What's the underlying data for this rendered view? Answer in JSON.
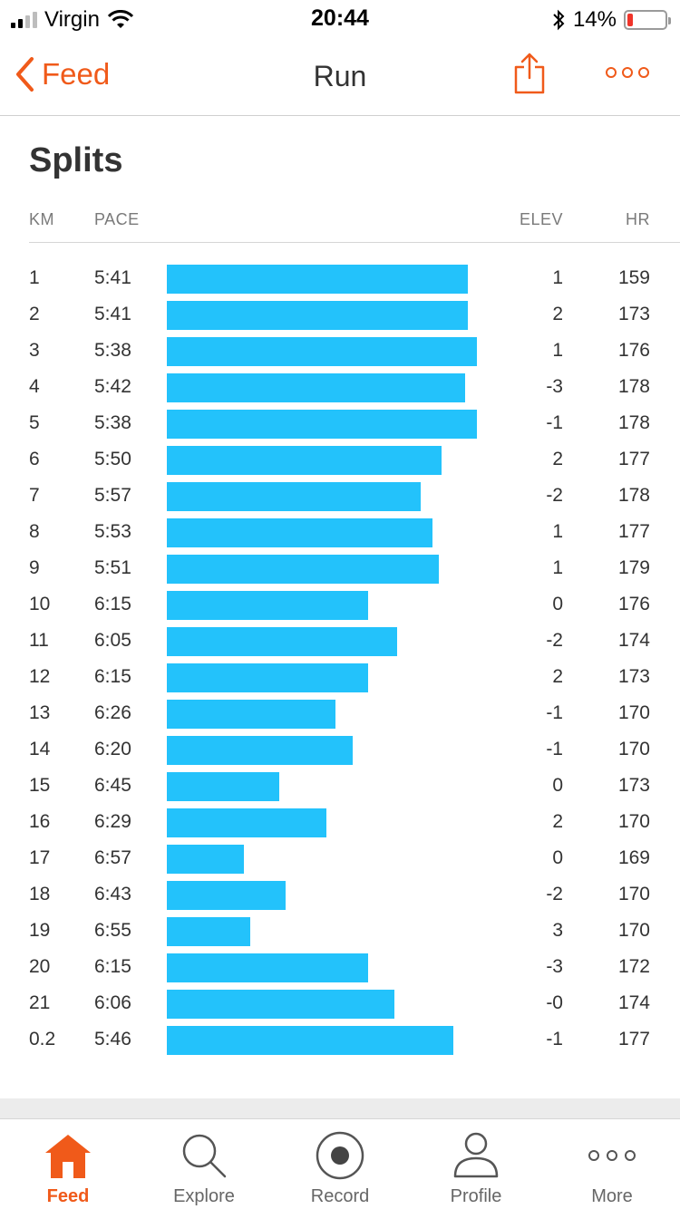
{
  "status_bar": {
    "carrier": "Virgin",
    "time": "20:44",
    "battery_percent": "14%",
    "battery_level": 0.14,
    "icons": [
      "signal-icon",
      "wifi-icon",
      "bluetooth-icon",
      "battery-icon"
    ]
  },
  "nav": {
    "back_label": "Feed",
    "title": "Run",
    "share_icon": "share-icon",
    "more_icon": "more-icon"
  },
  "splits": {
    "title": "Splits",
    "headers": {
      "km": "KM",
      "pace": "PACE",
      "elev": "ELEV",
      "hr": "HR"
    },
    "bar_color": "#23c2fb",
    "rows": [
      {
        "km": "1",
        "pace": "5:41",
        "elev": "1",
        "hr": "159",
        "pace_seconds": 341
      },
      {
        "km": "2",
        "pace": "5:41",
        "elev": "2",
        "hr": "173",
        "pace_seconds": 341
      },
      {
        "km": "3",
        "pace": "5:38",
        "elev": "1",
        "hr": "176",
        "pace_seconds": 338
      },
      {
        "km": "4",
        "pace": "5:42",
        "elev": "-3",
        "hr": "178",
        "pace_seconds": 342
      },
      {
        "km": "5",
        "pace": "5:38",
        "elev": "-1",
        "hr": "178",
        "pace_seconds": 338
      },
      {
        "km": "6",
        "pace": "5:50",
        "elev": "2",
        "hr": "177",
        "pace_seconds": 350
      },
      {
        "km": "7",
        "pace": "5:57",
        "elev": "-2",
        "hr": "178",
        "pace_seconds": 357
      },
      {
        "km": "8",
        "pace": "5:53",
        "elev": "1",
        "hr": "177",
        "pace_seconds": 353
      },
      {
        "km": "9",
        "pace": "5:51",
        "elev": "1",
        "hr": "179",
        "pace_seconds": 351
      },
      {
        "km": "10",
        "pace": "6:15",
        "elev": "0",
        "hr": "176",
        "pace_seconds": 375
      },
      {
        "km": "11",
        "pace": "6:05",
        "elev": "-2",
        "hr": "174",
        "pace_seconds": 365
      },
      {
        "km": "12",
        "pace": "6:15",
        "elev": "2",
        "hr": "173",
        "pace_seconds": 375
      },
      {
        "km": "13",
        "pace": "6:26",
        "elev": "-1",
        "hr": "170",
        "pace_seconds": 386
      },
      {
        "km": "14",
        "pace": "6:20",
        "elev": "-1",
        "hr": "170",
        "pace_seconds": 380
      },
      {
        "km": "15",
        "pace": "6:45",
        "elev": "0",
        "hr": "173",
        "pace_seconds": 405
      },
      {
        "km": "16",
        "pace": "6:29",
        "elev": "2",
        "hr": "170",
        "pace_seconds": 389
      },
      {
        "km": "17",
        "pace": "6:57",
        "elev": "0",
        "hr": "169",
        "pace_seconds": 417
      },
      {
        "km": "18",
        "pace": "6:43",
        "elev": "-2",
        "hr": "170",
        "pace_seconds": 403
      },
      {
        "km": "19",
        "pace": "6:55",
        "elev": "3",
        "hr": "170",
        "pace_seconds": 415
      },
      {
        "km": "20",
        "pace": "6:15",
        "elev": "-3",
        "hr": "172",
        "pace_seconds": 375
      },
      {
        "km": "21",
        "pace": "6:06",
        "elev": "-0",
        "hr": "174",
        "pace_seconds": 366
      },
      {
        "km": "0.2",
        "pace": "5:46",
        "elev": "-1",
        "hr": "177",
        "pace_seconds": 346
      }
    ]
  },
  "tabbar": {
    "accent_color": "#f05a1a",
    "tabs": [
      {
        "label": "Feed",
        "icon": "home-icon",
        "active": true
      },
      {
        "label": "Explore",
        "icon": "search-icon",
        "active": false
      },
      {
        "label": "Record",
        "icon": "record-icon",
        "active": false
      },
      {
        "label": "Profile",
        "icon": "profile-icon",
        "active": false
      },
      {
        "label": "More",
        "icon": "more-icon",
        "active": false
      }
    ]
  }
}
